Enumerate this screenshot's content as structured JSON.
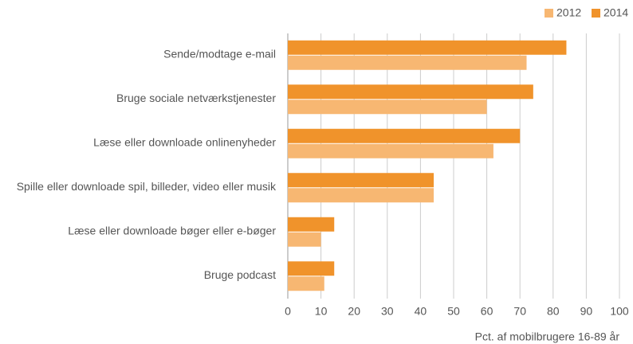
{
  "chart_data": {
    "type": "barh",
    "x_label": "Pct. af mobilbrugere 16-89 år",
    "categories": [
      "Sende/modtage e-mail",
      "Bruge sociale netværkstjenester",
      "Læse eller downloade onlinenyheder",
      "Spille eller downloade spil, billeder, video eller musik",
      "Læse eller downloade bøger eller e-bøger",
      "Bruge podcast"
    ],
    "series": [
      {
        "name": "2012",
        "color": "#f7b772",
        "values": [
          72,
          60,
          62,
          44,
          10,
          11
        ]
      },
      {
        "name": "2014",
        "color": "#f0932b",
        "values": [
          84,
          74,
          70,
          44,
          14,
          14
        ]
      }
    ],
    "xlim": [
      0,
      100
    ],
    "xticks": [
      0,
      10,
      20,
      30,
      40,
      50,
      60,
      70,
      80,
      90,
      100
    ],
    "grid": true,
    "legend": "top-right"
  }
}
